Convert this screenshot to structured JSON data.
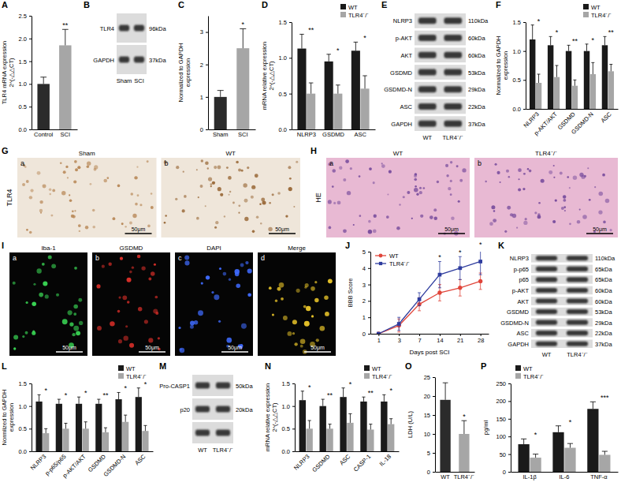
{
  "chart_data": [
    {
      "panel": "A",
      "type": "bar",
      "categories": [
        "Control",
        "SCI"
      ],
      "values": [
        1.0,
        1.85
      ],
      "errors": [
        0.15,
        0.35
      ],
      "colors": [
        "#2b2b2b",
        "#a6a6a6"
      ],
      "annotations": [
        null,
        "**"
      ],
      "ylabel": [
        "TLR4 mRNA expression",
        "2^(-△△CT)"
      ],
      "ylim": [
        0,
        2.5
      ],
      "yticks": [
        {
          "value": 0,
          "label": "0.0"
        },
        0.5,
        {
          "value": 1,
          "label": "1.0"
        },
        1.5,
        {
          "value": 2,
          "label": "2.0"
        },
        2.5
      ]
    },
    {
      "panel": "C",
      "type": "bar",
      "categories": [
        "Sham",
        "SCI"
      ],
      "values": [
        1.0,
        2.5
      ],
      "errors": [
        0.2,
        0.6
      ],
      "colors": [
        "#2b2b2b",
        "#a6a6a6"
      ],
      "annotations": [
        null,
        "*"
      ],
      "ylabel": [
        "Normalized to GAPDH",
        "expression"
      ],
      "ylim": [
        0,
        3.5
      ],
      "yticks": [
        0,
        1,
        2,
        3
      ]
    },
    {
      "panel": "D",
      "type": "bar",
      "categories": [
        "NLRP3",
        "GSDMD",
        "ASC"
      ],
      "series": [
        {
          "name": "WT",
          "color": "#1a1a1a",
          "values": [
            1.13,
            0.95,
            1.1
          ],
          "errors": [
            0.2,
            0.1,
            0.12
          ]
        },
        {
          "name": "TLR4⁻/⁻",
          "color": "#a6a6a6",
          "values": [
            0.5,
            0.5,
            0.57
          ],
          "errors": [
            0.15,
            0.12,
            0.18
          ]
        }
      ],
      "annotations": [
        "**",
        "*",
        "*"
      ],
      "legend": "top-right",
      "ylabel": [
        "mRNA relative expression",
        "2^(-△△CT)"
      ],
      "ylim": [
        0,
        1.5
      ],
      "yticks": [
        {
          "value": 0,
          "label": "0.0"
        },
        0.5,
        {
          "value": 1,
          "label": "1.0"
        },
        1.5
      ]
    },
    {
      "panel": "F",
      "type": "bar",
      "categories": [
        "NLRP3",
        "p-AKT/AKT",
        "GSDMD",
        "GSDMD-N",
        "ASC"
      ],
      "series": [
        {
          "name": "WT",
          "color": "#1a1a1a",
          "values": [
            1.2,
            1.1,
            1.0,
            1.0,
            1.1
          ],
          "errors": [
            0.25,
            0.15,
            0.1,
            0.12,
            0.15
          ]
        },
        {
          "name": "TLR4⁻/⁻",
          "color": "#a6a6a6",
          "values": [
            0.45,
            0.55,
            0.4,
            0.6,
            0.65
          ],
          "errors": [
            0.15,
            0.2,
            0.1,
            0.2,
            0.12
          ]
        }
      ],
      "annotations": [
        "*",
        "*",
        "**",
        "*",
        "**"
      ],
      "legend": "top-right",
      "ylabel": [
        "Normalized to GAPDH",
        "expression"
      ],
      "ylim": [
        0,
        1.5
      ],
      "yticks": [
        {
          "value": 0,
          "label": "0.0"
        },
        0.5,
        {
          "value": 1,
          "label": "1.0"
        },
        1.5
      ]
    },
    {
      "panel": "J",
      "type": "line",
      "categories": [
        "1",
        "3",
        "7",
        "14",
        "21",
        "28"
      ],
      "series": [
        {
          "name": "WT",
          "color": "#e0453a",
          "marker": "circle",
          "values": [
            0,
            0.5,
            1.8,
            2.5,
            2.8,
            3.2
          ],
          "errors": [
            0,
            0.4,
            0.4,
            0.5,
            0.5,
            0.5
          ]
        },
        {
          "name": "TLR4⁻/⁻",
          "color": "#2e3c9e",
          "marker": "square",
          "values": [
            0,
            0.6,
            2.1,
            3.6,
            4.0,
            4.4
          ],
          "errors": [
            0,
            0.4,
            0.4,
            0.8,
            0.7,
            0.8
          ]
        }
      ],
      "annotations": [
        null,
        null,
        null,
        "*",
        "*",
        "*"
      ],
      "legend": "top-left",
      "xlabel": "Days post SCI",
      "ylabel": "BBB Score",
      "ylim": [
        0,
        5
      ],
      "yticks": [
        0,
        1,
        2,
        3,
        4,
        5
      ]
    },
    {
      "panel": "L",
      "type": "bar",
      "categories": [
        "NLRP3",
        "p-p65/p65",
        "p-AKT/AKT",
        "GSDMD",
        "GSDMD-N",
        "ASC"
      ],
      "series": [
        {
          "name": "WT",
          "color": "#1a1a1a",
          "values": [
            1.1,
            1.05,
            1.05,
            1.05,
            1.15,
            1.2
          ],
          "errors": [
            0.15,
            0.1,
            0.15,
            0.1,
            0.15,
            0.2
          ]
        },
        {
          "name": "TLR4⁻/⁻",
          "color": "#a6a6a6",
          "values": [
            0.4,
            0.5,
            0.5,
            0.42,
            0.65,
            0.45
          ],
          "errors": [
            0.1,
            0.12,
            0.15,
            0.1,
            0.15,
            0.12
          ]
        }
      ],
      "annotations": [
        "*",
        "*",
        "*",
        "**",
        "*",
        "*"
      ],
      "legend": "top-right",
      "ylabel": [
        "Normlized to GAPDH",
        "expression"
      ],
      "ylim": [
        0,
        1.5
      ],
      "yticks": [
        {
          "value": 0,
          "label": "0.0"
        },
        0.5,
        {
          "value": 1,
          "label": "1.0"
        },
        1.5
      ]
    },
    {
      "panel": "N",
      "type": "bar",
      "categories": [
        "NLRP3",
        "GSDMD",
        "ASC",
        "CASP-1",
        "IL-18"
      ],
      "series": [
        {
          "name": "WT",
          "color": "#1a1a1a",
          "values": [
            1.13,
            1.0,
            1.2,
            1.1,
            1.1
          ],
          "errors": [
            0.2,
            0.15,
            0.2,
            0.1,
            0.15
          ]
        },
        {
          "name": "TLR4⁻/⁻",
          "color": "#a6a6a6",
          "values": [
            0.5,
            0.5,
            0.63,
            0.48,
            0.6
          ],
          "errors": [
            0.18,
            0.1,
            0.2,
            0.12,
            0.12
          ]
        }
      ],
      "annotations": [
        "*",
        "**",
        "*",
        "**",
        "*"
      ],
      "legend": "top-right",
      "ylabel": [
        "mRNA relative expression",
        "2^(-△△CT)"
      ],
      "ylim": [
        0,
        1.5
      ],
      "yticks": [
        {
          "value": 0,
          "label": "0.0"
        },
        0.5,
        {
          "value": 1,
          "label": "1.0"
        },
        1.5
      ]
    },
    {
      "panel": "O",
      "type": "bar",
      "categories": [
        "WT",
        "TLR4⁻/⁻"
      ],
      "values": [
        19,
        10
      ],
      "errors": [
        4.5,
        3.5
      ],
      "colors": [
        "#2b2b2b",
        "#a6a6a6"
      ],
      "annotations": [
        null,
        "*"
      ],
      "ylabel": [
        "LDH (U/L)"
      ],
      "ylim": [
        0,
        25
      ],
      "yticks": [
        0,
        5,
        10,
        15,
        20,
        25
      ]
    },
    {
      "panel": "P",
      "type": "bar",
      "categories": [
        "IL-1β",
        "IL-6",
        "TNF-α"
      ],
      "series": [
        {
          "name": "WT",
          "color": "#1a1a1a",
          "values": [
            78,
            112,
            178
          ],
          "errors": [
            15,
            18,
            20
          ]
        },
        {
          "name": "TLR4⁻/⁻",
          "color": "#a6a6a6",
          "values": [
            40,
            68,
            48
          ],
          "errors": [
            10,
            12,
            10
          ]
        }
      ],
      "annotations": [
        "*",
        "*",
        "***"
      ],
      "legend": "top-left",
      "ylabel": [
        "pg/ml"
      ],
      "ylim": [
        0,
        250
      ],
      "yticks": [
        0,
        50,
        100,
        150,
        200,
        250
      ]
    }
  ],
  "blots": [
    {
      "panel": "B",
      "lanes": [
        "Sham",
        "SCI"
      ],
      "rows": [
        {
          "name": "TLR4",
          "size": "96kDa"
        },
        {
          "name": "GAPDH",
          "size": "37kDa"
        }
      ]
    },
    {
      "panel": "E",
      "lanes": [
        "WT",
        "TLR4⁻/⁻"
      ],
      "rows": [
        {
          "name": "NLRP3",
          "size": "110kDa"
        },
        {
          "name": "p-AKT",
          "size": "60kDa"
        },
        {
          "name": "AKT",
          "size": "60kDa"
        },
        {
          "name": "GSDMD",
          "size": "53kDa"
        },
        {
          "name": "GSDMD-N",
          "size": "29kDa"
        },
        {
          "name": "ASC",
          "size": "22kDa"
        },
        {
          "name": "GAPDH",
          "size": "37kDa"
        }
      ]
    },
    {
      "panel": "K",
      "lanes": [
        "WT",
        "TLR4⁻/⁻"
      ],
      "rows": [
        {
          "name": "NLRP3",
          "size": "110kDa"
        },
        {
          "name": "p-p65",
          "size": "65kDa"
        },
        {
          "name": "p65",
          "size": "65kDa"
        },
        {
          "name": "p-AKT",
          "size": "60kDa"
        },
        {
          "name": "AKT",
          "size": "60kDa"
        },
        {
          "name": "GSDMD",
          "size": "53kDa"
        },
        {
          "name": "GSDMD-N",
          "size": "29kDa"
        },
        {
          "name": "ASC",
          "size": "22kDa"
        },
        {
          "name": "GAPDH",
          "size": "37kDa"
        }
      ]
    },
    {
      "panel": "M",
      "lanes": [
        "WT",
        "TLR4⁻/⁻"
      ],
      "rows": [
        {
          "name": "Pro-CASP1",
          "size": "50kDa"
        },
        {
          "name": "p20",
          "size": "20kDa"
        },
        {
          "name": null,
          "size": null
        }
      ]
    }
  ],
  "images": [
    {
      "panel": "G",
      "type": "ihc",
      "side_label": "TLR4",
      "tiles": [
        {
          "tag": "a",
          "title": "Sham",
          "scale": "50μm",
          "color": "#b98a5a"
        },
        {
          "tag": "b",
          "title": "WT",
          "scale": "50μm",
          "color": "#9a6a3a"
        }
      ]
    },
    {
      "panel": "H",
      "type": "he",
      "side_label": "HE",
      "tiles": [
        {
          "tag": "a",
          "title": "WT",
          "scale": "50μm",
          "color": "#7b4f9e"
        },
        {
          "tag": "b",
          "title": "TLR4⁻/⁻",
          "scale": "50μm",
          "color": "#7b4f9e"
        }
      ]
    },
    {
      "panel": "I",
      "type": "fluorescence",
      "side_label": null,
      "tiles": [
        {
          "tag": "a",
          "title": "Iba-1",
          "scale": "50μm",
          "color": "#39d353"
        },
        {
          "tag": "b",
          "title": "GSDMD",
          "scale": "50μm",
          "color": "#e0302a"
        },
        {
          "tag": "c",
          "title": "DAPI",
          "scale": "50μm",
          "color": "#3f6bff"
        },
        {
          "tag": "d",
          "title": "Merge",
          "scale": "50μm",
          "color": "#e6c229"
        }
      ]
    }
  ]
}
